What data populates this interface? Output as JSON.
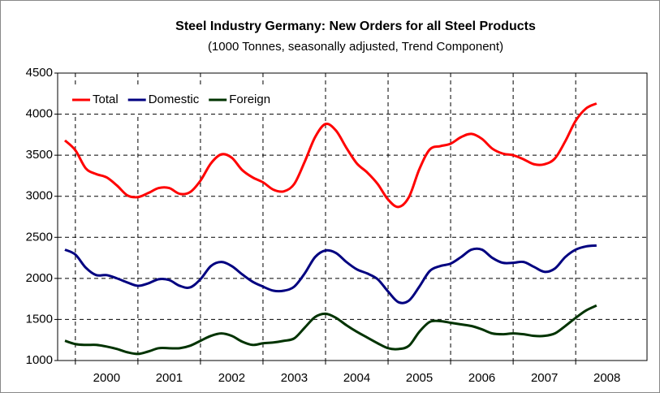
{
  "chart_data": {
    "type": "line",
    "title": "Steel Industry Germany: New Orders for all Steel Products",
    "subtitle": "(1000 Tonnes,  seasonally adjusted, Trend Component)",
    "categories": [
      null,
      null,
      null,
      null,
      "2000",
      null,
      null,
      null,
      null,
      null,
      "2001",
      null,
      null,
      null,
      null,
      null,
      "2002",
      null,
      null,
      null,
      null,
      null,
      "2003",
      null,
      null,
      null,
      null,
      null,
      "2004",
      null,
      null,
      null,
      null,
      null,
      "2005",
      null,
      null,
      null,
      null,
      null,
      "2006",
      null,
      null,
      null,
      null,
      null,
      "2007",
      null,
      null,
      null,
      null,
      null,
      "2008"
    ],
    "series": [
      {
        "name": "Total",
        "color": "#ff0000",
        "values": [
          3680,
          3560,
          3340,
          3270,
          3230,
          3130,
          3010,
          2990,
          3040,
          3100,
          3100,
          3030,
          3050,
          3190,
          3400,
          3510,
          3470,
          3320,
          3230,
          3170,
          3080,
          3060,
          3150,
          3420,
          3720,
          3880,
          3800,
          3590,
          3400,
          3290,
          3150,
          2960,
          2870,
          2990,
          3330,
          3570,
          3610,
          3640,
          3720,
          3760,
          3700,
          3580,
          3520,
          3500,
          3450,
          3390,
          3390,
          3460,
          3670,
          3920,
          4070,
          4130,
          null
        ]
      },
      {
        "name": "Domestic",
        "color": "#000080",
        "values": [
          2350,
          2290,
          2130,
          2040,
          2040,
          2000,
          1950,
          1910,
          1940,
          1990,
          1980,
          1910,
          1890,
          1990,
          2150,
          2200,
          2150,
          2050,
          1960,
          1900,
          1850,
          1850,
          1900,
          2060,
          2260,
          2340,
          2310,
          2200,
          2110,
          2060,
          1990,
          1840,
          1710,
          1730,
          1900,
          2090,
          2150,
          2180,
          2260,
          2350,
          2350,
          2250,
          2190,
          2190,
          2200,
          2140,
          2080,
          2120,
          2260,
          2350,
          2390,
          2400,
          null
        ]
      },
      {
        "name": "Foreign",
        "color": "#003300",
        "values": [
          1240,
          1200,
          1190,
          1190,
          1170,
          1140,
          1100,
          1080,
          1110,
          1150,
          1150,
          1150,
          1180,
          1240,
          1300,
          1330,
          1300,
          1230,
          1190,
          1210,
          1220,
          1240,
          1270,
          1400,
          1530,
          1570,
          1520,
          1430,
          1350,
          1280,
          1210,
          1150,
          1140,
          1180,
          1350,
          1470,
          1480,
          1460,
          1440,
          1420,
          1380,
          1330,
          1320,
          1330,
          1320,
          1300,
          1300,
          1330,
          1420,
          1520,
          1610,
          1670,
          null
        ]
      }
    ],
    "ylim": [
      1000,
      4500
    ],
    "yticks": [
      1000,
      1500,
      2000,
      2500,
      3000,
      3500,
      4000,
      4500
    ],
    "grid": true,
    "legend": "upper left"
  }
}
